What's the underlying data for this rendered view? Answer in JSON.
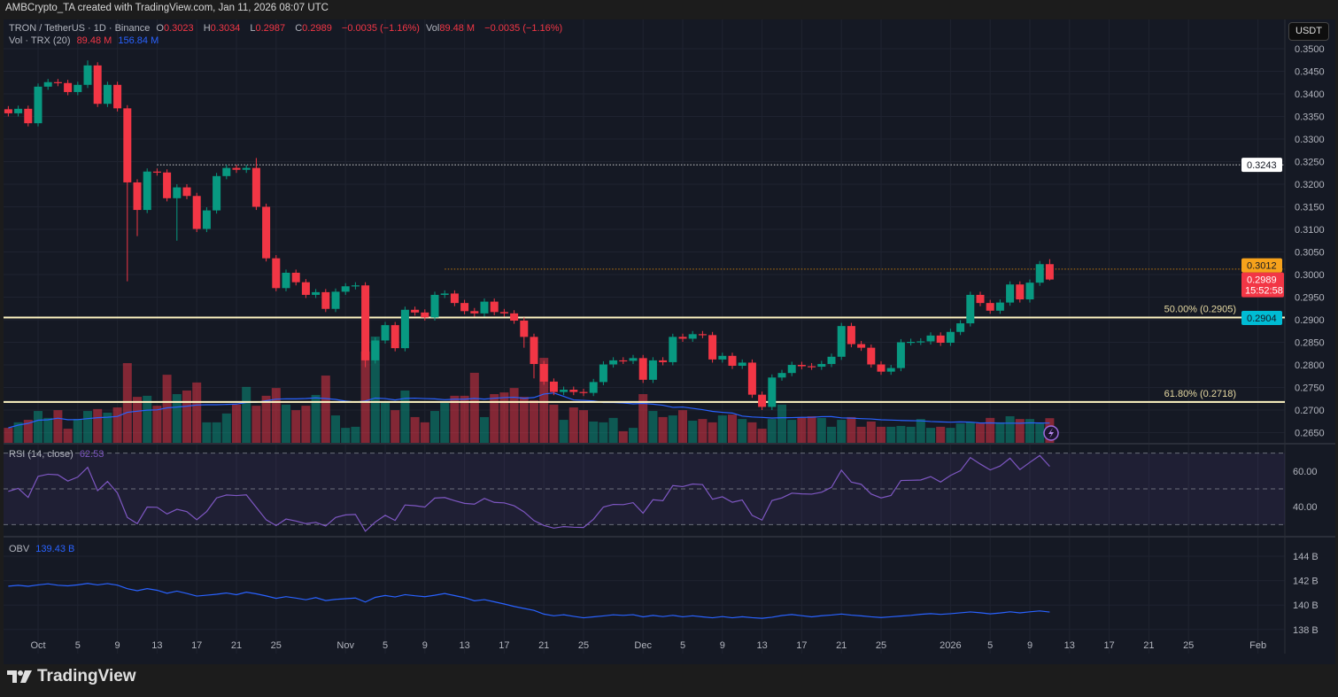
{
  "header": {
    "attribution": "AMBCrypto_TA created with TradingView.com, Jan 11, 2026 08:07 UTC"
  },
  "legend": {
    "symbol": "TRON / TetherUS · 1D · Binance",
    "o_label": "O",
    "o": "0.3023",
    "h_label": "H",
    "h": "0.3034",
    "l_label": "L",
    "l": "0.2987",
    "c_label": "C",
    "c": "0.2989",
    "change": "−0.0035 (−1.16%)",
    "vol_label": "Vol",
    "vol": "89.48 M",
    "vol_change": "−0.0035 (−1.16%)",
    "vol_study": "Vol · TRX (20)",
    "vol_value": "89.48 M",
    "vol_ma": "156.84 M"
  },
  "price_axis": {
    "currency": "USDT",
    "labels": [
      "0.3500",
      "0.3450",
      "0.3400",
      "0.3350",
      "0.3300",
      "0.3250",
      "0.3200",
      "0.3150",
      "0.3100",
      "0.3050",
      "0.3000",
      "0.2950",
      "0.2900",
      "0.2850",
      "0.2800",
      "0.2750",
      "0.2700",
      "0.2650"
    ],
    "markers": [
      {
        "value": "0.3243",
        "color": "#ffffff",
        "text": "#131722"
      },
      {
        "value": "0.3012",
        "color": "#f7a21b",
        "text": "#131722"
      },
      {
        "value": "0.2904",
        "color": "#00bcd4",
        "text": "#131722"
      }
    ],
    "last_price": {
      "value": "0.2989",
      "countdown": "15:52:58",
      "color": "#f23645"
    }
  },
  "levels": {
    "fib50": {
      "label": "50.00% (0.2905)",
      "value": 0.2905
    },
    "fib618": {
      "label": "61.80% (0.2718)",
      "value": 0.2718
    },
    "resistance_high": {
      "value": 0.3243,
      "from_date": "2025-10-13"
    },
    "resistance_mid": {
      "value": 0.3012,
      "from_date": "2025-11-11"
    }
  },
  "rsi": {
    "label": "RSI (14, close)",
    "value": "62.53",
    "axis": [
      "60.00",
      "40.00"
    ],
    "color": "#7e57c2"
  },
  "obv": {
    "label": "OBV",
    "value": "139.43 B",
    "last": 139.43,
    "axis": [
      "144 B",
      "142 B",
      "140 B",
      "138 B"
    ],
    "color": "#2962ff"
  },
  "x_axis": [
    {
      "label": "Oct",
      "date": "2025-10-01"
    },
    {
      "label": "5",
      "date": "2025-10-05"
    },
    {
      "label": "9",
      "date": "2025-10-09"
    },
    {
      "label": "13",
      "date": "2025-10-13"
    },
    {
      "label": "17",
      "date": "2025-10-17"
    },
    {
      "label": "21",
      "date": "2025-10-21"
    },
    {
      "label": "25",
      "date": "2025-10-25"
    },
    {
      "label": "Nov",
      "date": "2025-11-01"
    },
    {
      "label": "5",
      "date": "2025-11-05"
    },
    {
      "label": "9",
      "date": "2025-11-09"
    },
    {
      "label": "13",
      "date": "2025-11-13"
    },
    {
      "label": "17",
      "date": "2025-11-17"
    },
    {
      "label": "21",
      "date": "2025-11-21"
    },
    {
      "label": "25",
      "date": "2025-11-25"
    },
    {
      "label": "Dec",
      "date": "2025-12-01"
    },
    {
      "label": "5",
      "date": "2025-12-05"
    },
    {
      "label": "9",
      "date": "2025-12-09"
    },
    {
      "label": "13",
      "date": "2025-12-13"
    },
    {
      "label": "17",
      "date": "2025-12-17"
    },
    {
      "label": "21",
      "date": "2025-12-21"
    },
    {
      "label": "25",
      "date": "2025-12-25"
    },
    {
      "label": "2026",
      "date": "2026-01-01"
    },
    {
      "label": "5",
      "date": "2026-01-05"
    },
    {
      "label": "9",
      "date": "2026-01-09"
    },
    {
      "label": "13",
      "date": "2026-01-13"
    },
    {
      "label": "17",
      "date": "2026-01-17"
    },
    {
      "label": "21",
      "date": "2026-01-21"
    },
    {
      "label": "25",
      "date": "2026-01-25"
    },
    {
      "label": "Feb",
      "date": "2026-02-01"
    }
  ],
  "chart_data": {
    "type": "candlestick",
    "title": "TRON / TetherUS · 1D · Binance",
    "start_date": "2025-09-28",
    "first_open": 0.3366,
    "close": [
      0.3357,
      0.3367,
      0.3335,
      0.3416,
      0.3426,
      0.3424,
      0.3404,
      0.342,
      0.3463,
      0.3378,
      0.342,
      0.3368,
      0.3204,
      0.3143,
      0.3228,
      0.3226,
      0.3169,
      0.3193,
      0.3174,
      0.3101,
      0.3142,
      0.3218,
      0.3236,
      0.3232,
      0.3236,
      0.315,
      0.3036,
      0.297,
      0.3004,
      0.2983,
      0.2955,
      0.2961,
      0.2924,
      0.2962,
      0.2974,
      0.2976,
      0.281,
      0.2854,
      0.2888,
      0.2837,
      0.2922,
      0.2916,
      0.2905,
      0.2955,
      0.2958,
      0.2937,
      0.2919,
      0.2914,
      0.294,
      0.2917,
      0.2914,
      0.2898,
      0.2862,
      0.2802,
      0.2763,
      0.274,
      0.2745,
      0.274,
      0.2738,
      0.2762,
      0.2801,
      0.281,
      0.2809,
      0.2815,
      0.2767,
      0.281,
      0.2806,
      0.2862,
      0.2858,
      0.2868,
      0.2866,
      0.2812,
      0.282,
      0.2798,
      0.2805,
      0.2734,
      0.2707,
      0.2772,
      0.2782,
      0.28,
      0.2797,
      0.2796,
      0.2802,
      0.2818,
      0.2886,
      0.2846,
      0.2838,
      0.2801,
      0.2785,
      0.2793,
      0.285,
      0.2851,
      0.2852,
      0.2865,
      0.2849,
      0.2873,
      0.2892,
      0.2955,
      0.2937,
      0.292,
      0.2938,
      0.2978,
      0.2945,
      0.2982,
      0.3023,
      0.2989
    ],
    "wick_overrides": {
      "8": {
        "h": 0.3474
      },
      "12": {
        "l": 0.2985
      },
      "13": {
        "l": 0.3085
      },
      "17": {
        "l": 0.3075
      },
      "25": {
        "h": 0.3258
      },
      "36": {
        "l": 0.2795
      },
      "52": {
        "l": 0.2838
      },
      "53": {
        "l": 0.277
      },
      "76": {
        "l": 0.27
      },
      "105": {
        "h": 0.3034,
        "l": 0.2987
      }
    },
    "volume_millions": [
      54,
      74,
      83,
      115,
      90,
      118,
      51,
      86,
      115,
      122,
      109,
      128,
      288,
      166,
      170,
      134,
      246,
      176,
      189,
      218,
      74,
      74,
      106,
      138,
      202,
      134,
      170,
      198,
      138,
      118,
      134,
      173,
      243,
      99,
      54,
      58,
      330,
      384,
      150,
      118,
      189,
      93,
      74,
      115,
      144,
      170,
      170,
      253,
      93,
      176,
      182,
      198,
      166,
      154,
      307,
      138,
      83,
      128,
      118,
      77,
      74,
      90,
      42,
      54,
      176,
      115,
      93,
      99,
      118,
      80,
      86,
      74,
      99,
      102,
      86,
      74,
      51,
      86,
      138,
      83,
      93,
      96,
      90,
      58,
      83,
      93,
      58,
      77,
      58,
      58,
      61,
      58,
      86,
      54,
      58,
      54,
      70,
      74,
      70,
      90,
      74,
      96,
      86,
      86,
      70,
      89
    ],
    "ylim": [
      0.265,
      0.35
    ],
    "colors": {
      "up": "#089981",
      "down": "#f23645"
    }
  }
}
